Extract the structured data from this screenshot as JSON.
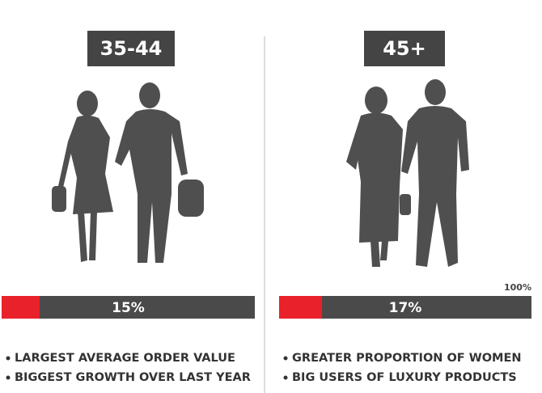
{
  "scale_max": {
    "value": 100,
    "label": "100%"
  },
  "panels": [
    {
      "title": "35-44",
      "value": 15,
      "value_label": "15%",
      "bullets": [
        "LARGEST AVERAGE ORDER VALUE",
        "BIGGEST GROWTH OVER LAST YEAR"
      ]
    },
    {
      "title": "45+",
      "value": 17,
      "value_label": "17%",
      "bullets": [
        "GREATER PROPORTION OF WOMEN",
        "BIG USERS OF LUXURY PRODUCTS"
      ]
    }
  ]
}
